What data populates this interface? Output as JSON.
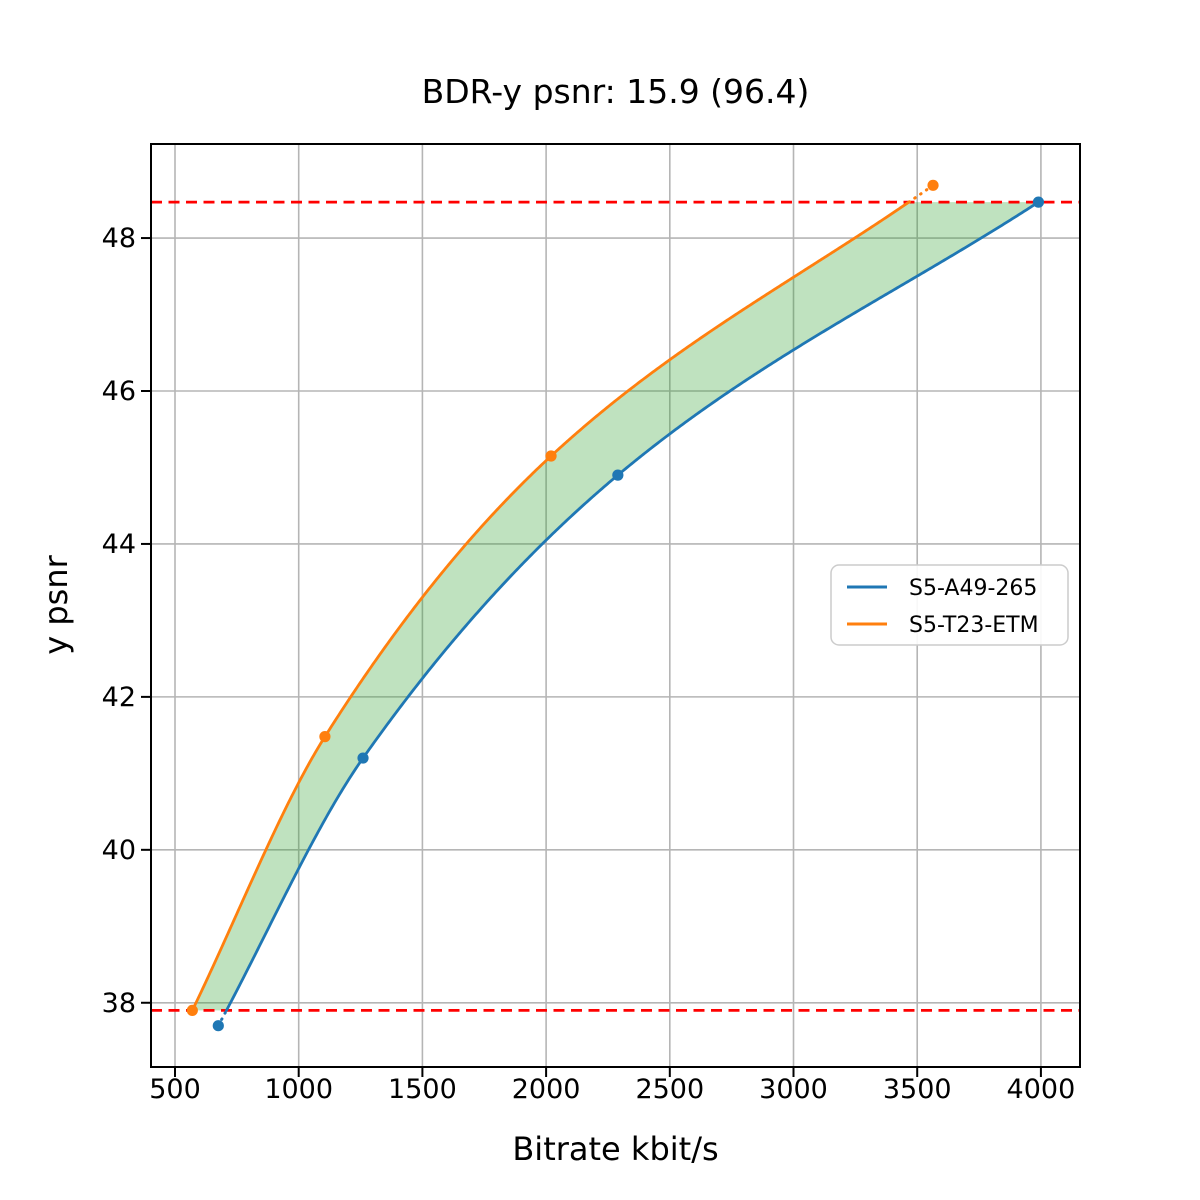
{
  "chart_data": {
    "type": "line",
    "title": "BDR-y psnr: 15.9 (96.4)",
    "xlabel": "Bitrate kbit/s",
    "ylabel": "y psnr",
    "xlim": [
      403,
      4158
    ],
    "ylim": [
      37.16,
      49.23
    ],
    "x_ticks": [
      500,
      1000,
      1500,
      2000,
      2500,
      3000,
      3500,
      4000
    ],
    "y_ticks": [
      38,
      40,
      42,
      44,
      46,
      48
    ],
    "grid": true,
    "grid_color": "#b5b5b5",
    "series": [
      {
        "name": "S5-A49-265",
        "color": "#1f77b4",
        "marker": "circle",
        "x": [
          675,
          1260,
          2290,
          3990
        ],
        "y": [
          37.7,
          41.2,
          44.9,
          48.47
        ]
      },
      {
        "name": "S5-T23-ETM",
        "color": "#ff7f0e",
        "marker": "circle",
        "x": [
          570,
          1106,
          2020,
          3564
        ],
        "y": [
          37.9,
          41.48,
          45.15,
          48.69
        ]
      }
    ],
    "overlap_band": {
      "fill_color": "#2ca02c",
      "fill_opacity": 0.3,
      "y_min": 37.9,
      "y_max": 48.47
    },
    "reference_lines": {
      "color": "#ff0000",
      "style": "dashed",
      "y_values": [
        37.9,
        48.47
      ]
    },
    "legend": {
      "position": "center-right",
      "entries": [
        "S5-A49-265",
        "S5-T23-ETM"
      ]
    }
  }
}
